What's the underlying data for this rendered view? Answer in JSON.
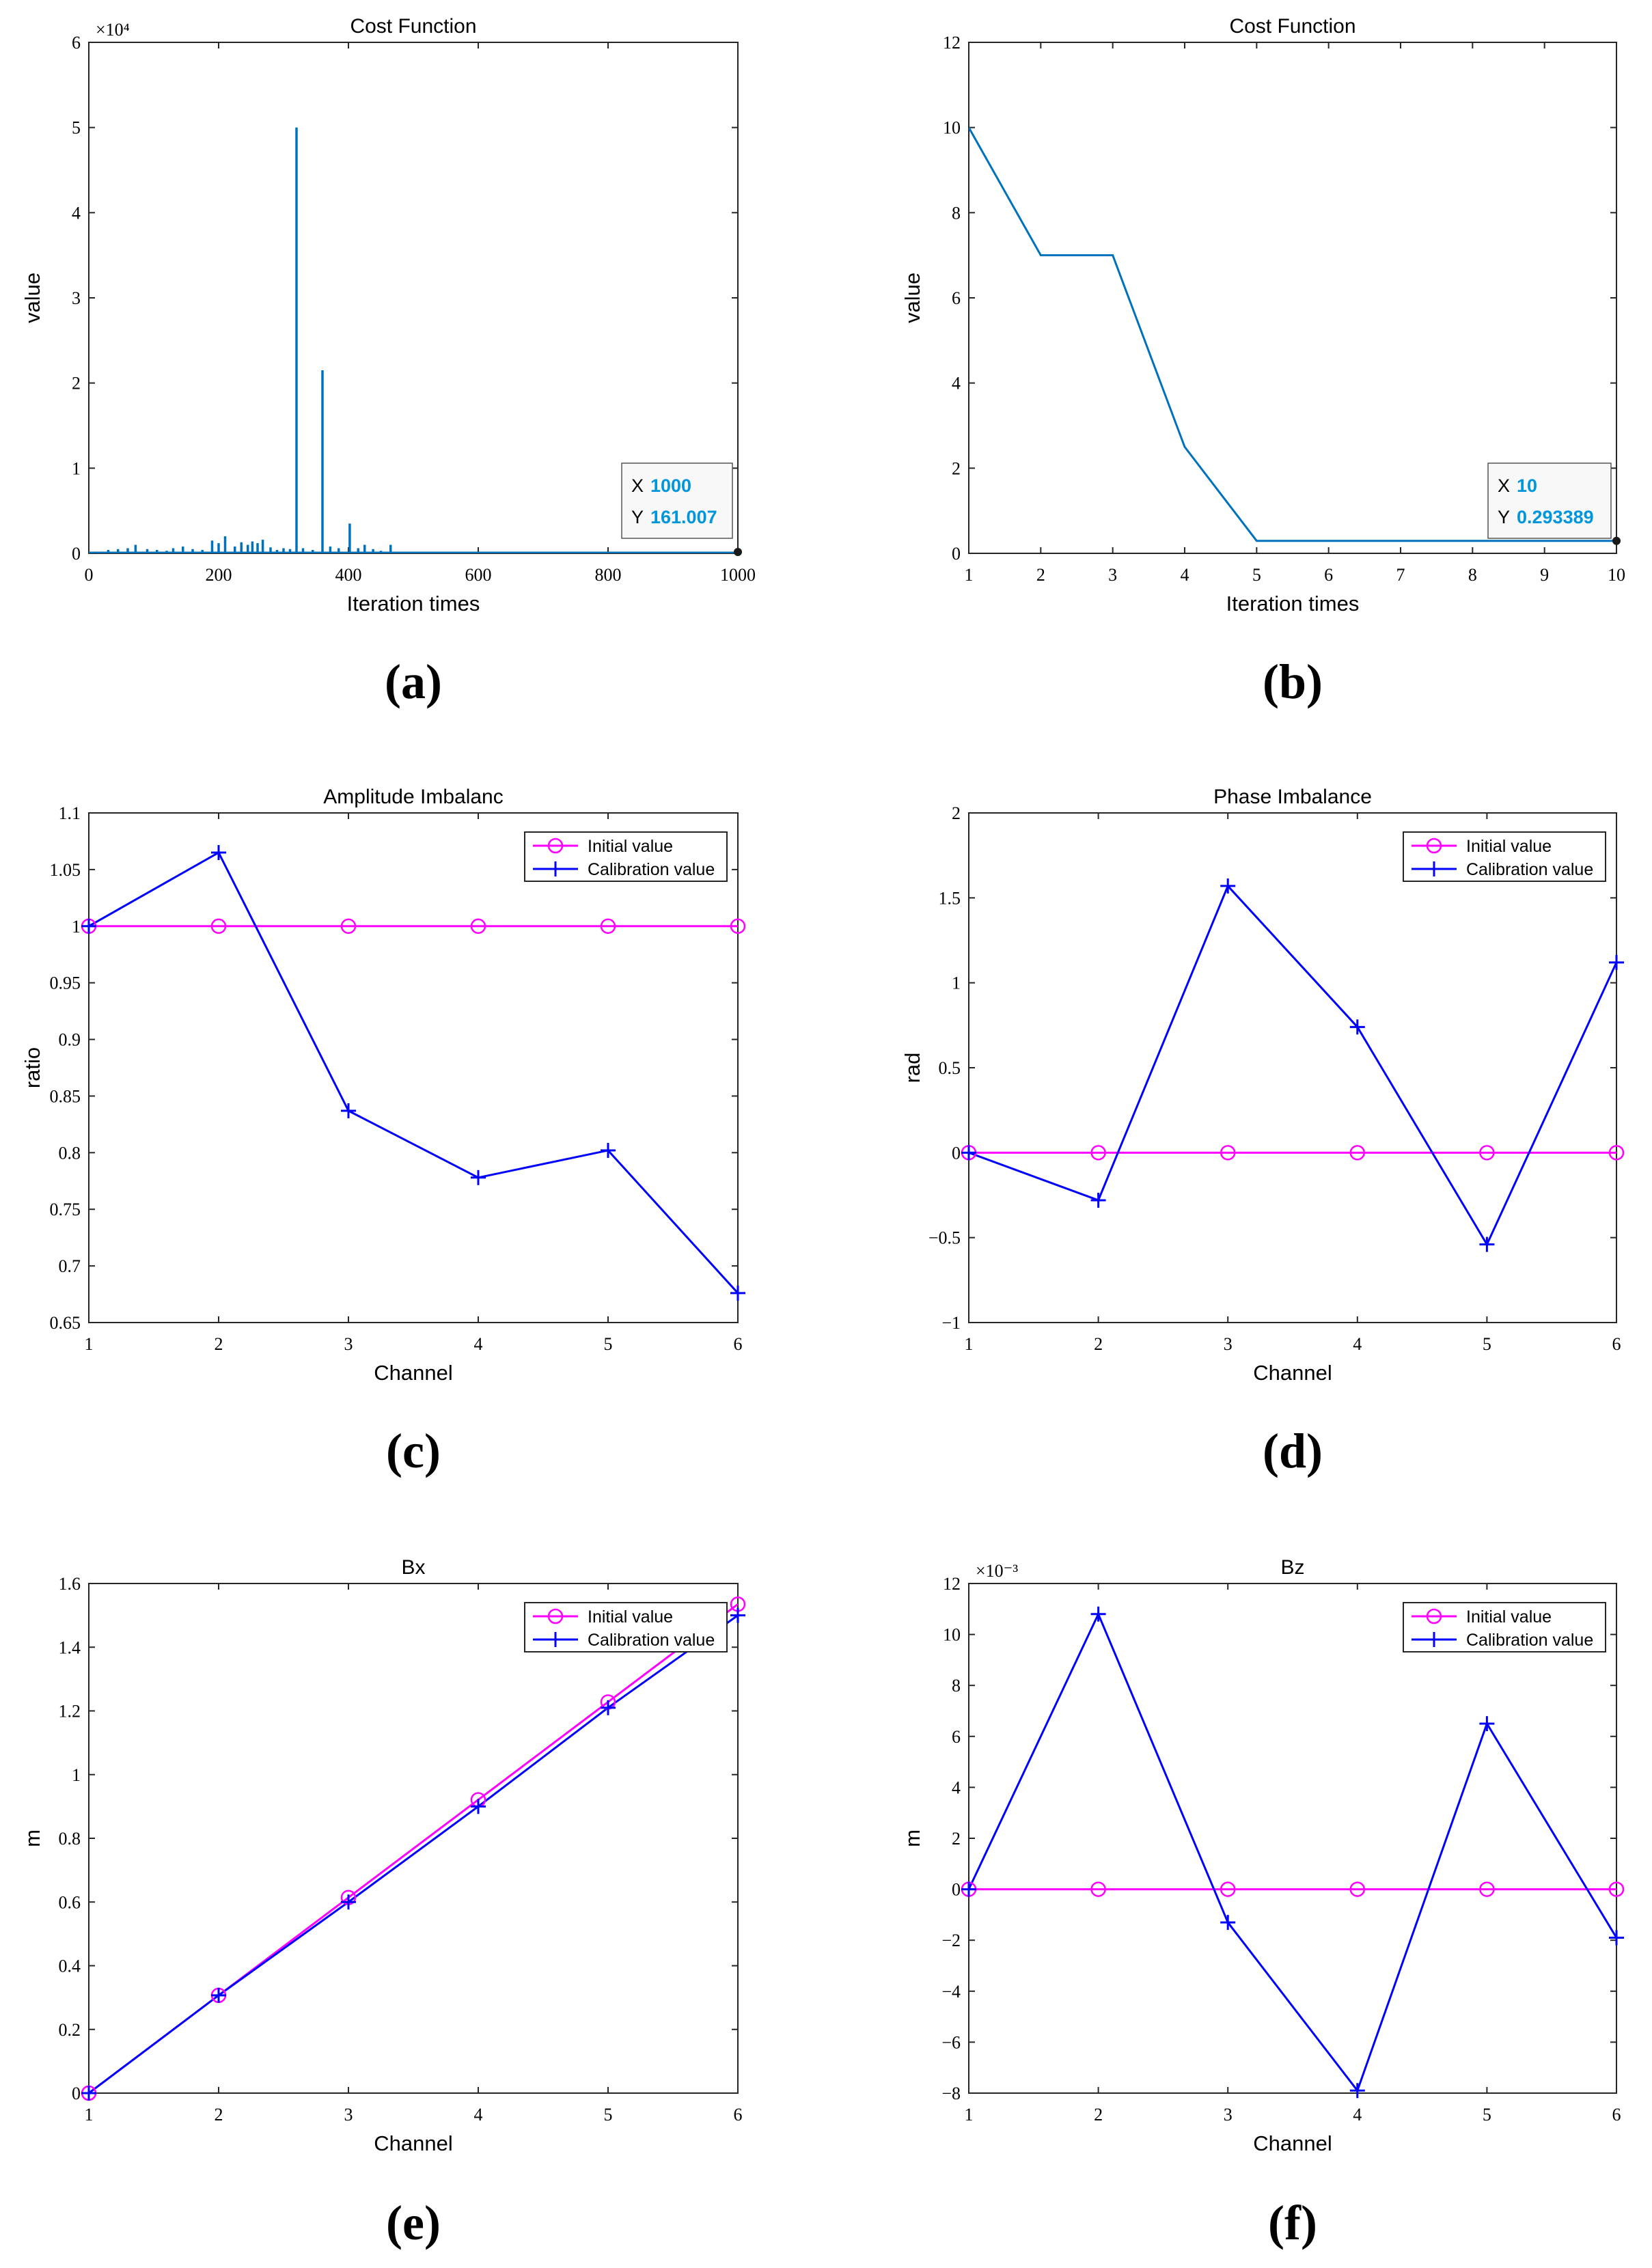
{
  "colors": {
    "line_a": "#0072BD",
    "magenta": "#FF00FF",
    "blue": "#0000FF",
    "datatip_value": "#0096DC"
  },
  "chart_data": [
    {
      "panel": "(a)",
      "type": "line",
      "title": "Cost Function",
      "xlabel": "Iteration times",
      "ylabel": "value",
      "exponent_label": "×10⁴",
      "xlim": [
        0,
        1000
      ],
      "ylim": [
        0,
        6
      ],
      "y_scale": 10000,
      "xticks": [
        0,
        200,
        400,
        600,
        800,
        1000
      ],
      "xtick_labels": [
        "0",
        "200",
        "400",
        "600",
        "800",
        "1000"
      ],
      "yticks": [
        0,
        1,
        2,
        3,
        4,
        5,
        6
      ],
      "ytick_labels": [
        "0",
        "1",
        "2",
        "3",
        "4",
        "5",
        "6"
      ],
      "series": [
        {
          "name": "cost",
          "color": "#0072BD",
          "spikes": [
            [
              30,
              0.04
            ],
            [
              45,
              0.05
            ],
            [
              60,
              0.06
            ],
            [
              72,
              0.1
            ],
            [
              90,
              0.05
            ],
            [
              105,
              0.04
            ],
            [
              120,
              0.03
            ],
            [
              130,
              0.06
            ],
            [
              145,
              0.08
            ],
            [
              160,
              0.05
            ],
            [
              175,
              0.04
            ],
            [
              190,
              0.15
            ],
            [
              200,
              0.12
            ],
            [
              210,
              0.2
            ],
            [
              225,
              0.08
            ],
            [
              235,
              0.13
            ],
            [
              245,
              0.1
            ],
            [
              252,
              0.14
            ],
            [
              260,
              0.12
            ],
            [
              268,
              0.16
            ],
            [
              280,
              0.07
            ],
            [
              290,
              0.04
            ],
            [
              300,
              0.06
            ],
            [
              310,
              0.05
            ],
            [
              320,
              5.0
            ],
            [
              330,
              0.06
            ],
            [
              345,
              0.04
            ],
            [
              360,
              2.15
            ],
            [
              372,
              0.08
            ],
            [
              385,
              0.06
            ],
            [
              402,
              0.35
            ],
            [
              415,
              0.06
            ],
            [
              425,
              0.1
            ],
            [
              438,
              0.05
            ],
            [
              450,
              0.03
            ],
            [
              465,
              0.1
            ],
            [
              480,
              0.02
            ],
            [
              520,
              0.01
            ],
            [
              610,
              0.015
            ],
            [
              720,
              0.01
            ],
            [
              860,
              0.01
            ],
            [
              960,
              0.01
            ]
          ],
          "final_point": {
            "x": 1000,
            "y": 161.007
          }
        }
      ],
      "datatip": {
        "x_label": "X",
        "x_value": "1000",
        "y_label": "Y",
        "y_value": "161.007"
      }
    },
    {
      "panel": "(b)",
      "type": "line",
      "title": "Cost Function",
      "xlabel": "Iteration times",
      "ylabel": "value",
      "xlim": [
        1,
        10
      ],
      "ylim": [
        0,
        12
      ],
      "xticks": [
        1,
        2,
        3,
        4,
        5,
        6,
        7,
        8,
        9,
        10
      ],
      "xtick_labels": [
        "1",
        "2",
        "3",
        "4",
        "5",
        "6",
        "7",
        "8",
        "9",
        "10"
      ],
      "yticks": [
        0,
        2,
        4,
        6,
        8,
        10,
        12
      ],
      "ytick_labels": [
        "0",
        "2",
        "4",
        "6",
        "8",
        "10",
        "12"
      ],
      "series": [
        {
          "name": "cost",
          "color": "#0072BD",
          "x": [
            1,
            2,
            3,
            4,
            5,
            6,
            7,
            8,
            9,
            10
          ],
          "values": [
            10,
            7,
            7,
            2.5,
            0.293389,
            0.293389,
            0.293389,
            0.293389,
            0.293389,
            0.293389
          ]
        }
      ],
      "datatip": {
        "x_label": "X",
        "x_value": "10",
        "y_label": "Y",
        "y_value": "0.293389"
      }
    },
    {
      "panel": "(c)",
      "type": "line",
      "title": "Amplitude Imbalanc",
      "xlabel": "Channel",
      "ylabel": "ratio",
      "xlim": [
        1,
        6
      ],
      "ylim": [
        0.65,
        1.1
      ],
      "xticks": [
        1,
        2,
        3,
        4,
        5,
        6
      ],
      "xtick_labels": [
        "1",
        "2",
        "3",
        "4",
        "5",
        "6"
      ],
      "yticks": [
        0.65,
        0.7,
        0.75,
        0.8,
        0.85,
        0.9,
        0.95,
        1,
        1.05,
        1.1
      ],
      "ytick_labels": [
        "0.65",
        "0.7",
        "0.75",
        "0.8",
        "0.85",
        "0.9",
        "0.95",
        "1",
        "1.05",
        "1.1"
      ],
      "legend": [
        "Initial value",
        "Calibration value"
      ],
      "series": [
        {
          "name": "Initial value",
          "color": "#FF00FF",
          "marker": "o",
          "x": [
            1,
            2,
            3,
            4,
            5,
            6
          ],
          "values": [
            1,
            1,
            1,
            1,
            1,
            1
          ]
        },
        {
          "name": "Calibration value",
          "color": "#0000FF",
          "marker": "+",
          "x": [
            1,
            2,
            3,
            4,
            5,
            6
          ],
          "values": [
            1,
            1.065,
            0.837,
            0.778,
            0.802,
            0.676
          ]
        }
      ]
    },
    {
      "panel": "(d)",
      "type": "line",
      "title": "Phase Imbalance",
      "xlabel": "Channel",
      "ylabel": "rad",
      "xlim": [
        1,
        6
      ],
      "ylim": [
        -1,
        2
      ],
      "xticks": [
        1,
        2,
        3,
        4,
        5,
        6
      ],
      "xtick_labels": [
        "1",
        "2",
        "3",
        "4",
        "5",
        "6"
      ],
      "yticks": [
        -1,
        -0.5,
        0,
        0.5,
        1,
        1.5,
        2
      ],
      "ytick_labels": [
        "−1",
        "−0.5",
        "0",
        "0.5",
        "1",
        "1.5",
        "2"
      ],
      "legend": [
        "Initial value",
        "Calibration value"
      ],
      "series": [
        {
          "name": "Initial value",
          "color": "#FF00FF",
          "marker": "o",
          "x": [
            1,
            2,
            3,
            4,
            5,
            6
          ],
          "values": [
            0,
            0,
            0,
            0,
            0,
            0
          ]
        },
        {
          "name": "Calibration value",
          "color": "#0000FF",
          "marker": "+",
          "x": [
            1,
            2,
            3,
            4,
            5,
            6
          ],
          "values": [
            0,
            -0.28,
            1.57,
            0.74,
            -0.54,
            1.12
          ]
        }
      ]
    },
    {
      "panel": "(e)",
      "type": "line",
      "title": "Bx",
      "xlabel": "Channel",
      "ylabel": "m",
      "xlim": [
        1,
        6
      ],
      "ylim": [
        0,
        1.6
      ],
      "xticks": [
        1,
        2,
        3,
        4,
        5,
        6
      ],
      "xtick_labels": [
        "1",
        "2",
        "3",
        "4",
        "5",
        "6"
      ],
      "yticks": [
        0,
        0.2,
        0.4,
        0.6,
        0.8,
        1,
        1.2,
        1.4,
        1.6
      ],
      "ytick_labels": [
        "0",
        "0.2",
        "0.4",
        "0.6",
        "0.8",
        "1",
        "1.2",
        "1.4",
        "1.6"
      ],
      "legend": [
        "Initial value",
        "Calibration value"
      ],
      "series": [
        {
          "name": "Initial value",
          "color": "#FF00FF",
          "marker": "o",
          "x": [
            1,
            2,
            3,
            4,
            5,
            6
          ],
          "values": [
            0,
            0.307,
            0.614,
            0.921,
            1.228,
            1.535
          ]
        },
        {
          "name": "Calibration value",
          "color": "#0000FF",
          "marker": "+",
          "x": [
            1,
            2,
            3,
            4,
            5,
            6
          ],
          "values": [
            0,
            0.307,
            0.6,
            0.9,
            1.21,
            1.5
          ]
        }
      ]
    },
    {
      "panel": "(f)",
      "type": "line",
      "title": "Bz",
      "xlabel": "Channel",
      "ylabel": "m",
      "exponent_label": "×10⁻³",
      "xlim": [
        1,
        6
      ],
      "ylim": [
        -8,
        12
      ],
      "y_scale": 0.001,
      "xticks": [
        1,
        2,
        3,
        4,
        5,
        6
      ],
      "xtick_labels": [
        "1",
        "2",
        "3",
        "4",
        "5",
        "6"
      ],
      "yticks": [
        -8,
        -6,
        -4,
        -2,
        0,
        2,
        4,
        6,
        8,
        10,
        12
      ],
      "ytick_labels": [
        "−8",
        "−6",
        "−4",
        "−2",
        "0",
        "2",
        "4",
        "6",
        "8",
        "10",
        "12"
      ],
      "legend": [
        "Initial value",
        "Calibration value"
      ],
      "series": [
        {
          "name": "Initial value",
          "color": "#FF00FF",
          "marker": "o",
          "x": [
            1,
            2,
            3,
            4,
            5,
            6
          ],
          "values": [
            0,
            0,
            0,
            0,
            0,
            0
          ]
        },
        {
          "name": "Calibration value",
          "color": "#0000FF",
          "marker": "+",
          "x": [
            1,
            2,
            3,
            4,
            5,
            6
          ],
          "values": [
            0,
            10.8,
            -1.3,
            -7.9,
            6.5,
            -1.9
          ]
        }
      ]
    }
  ]
}
